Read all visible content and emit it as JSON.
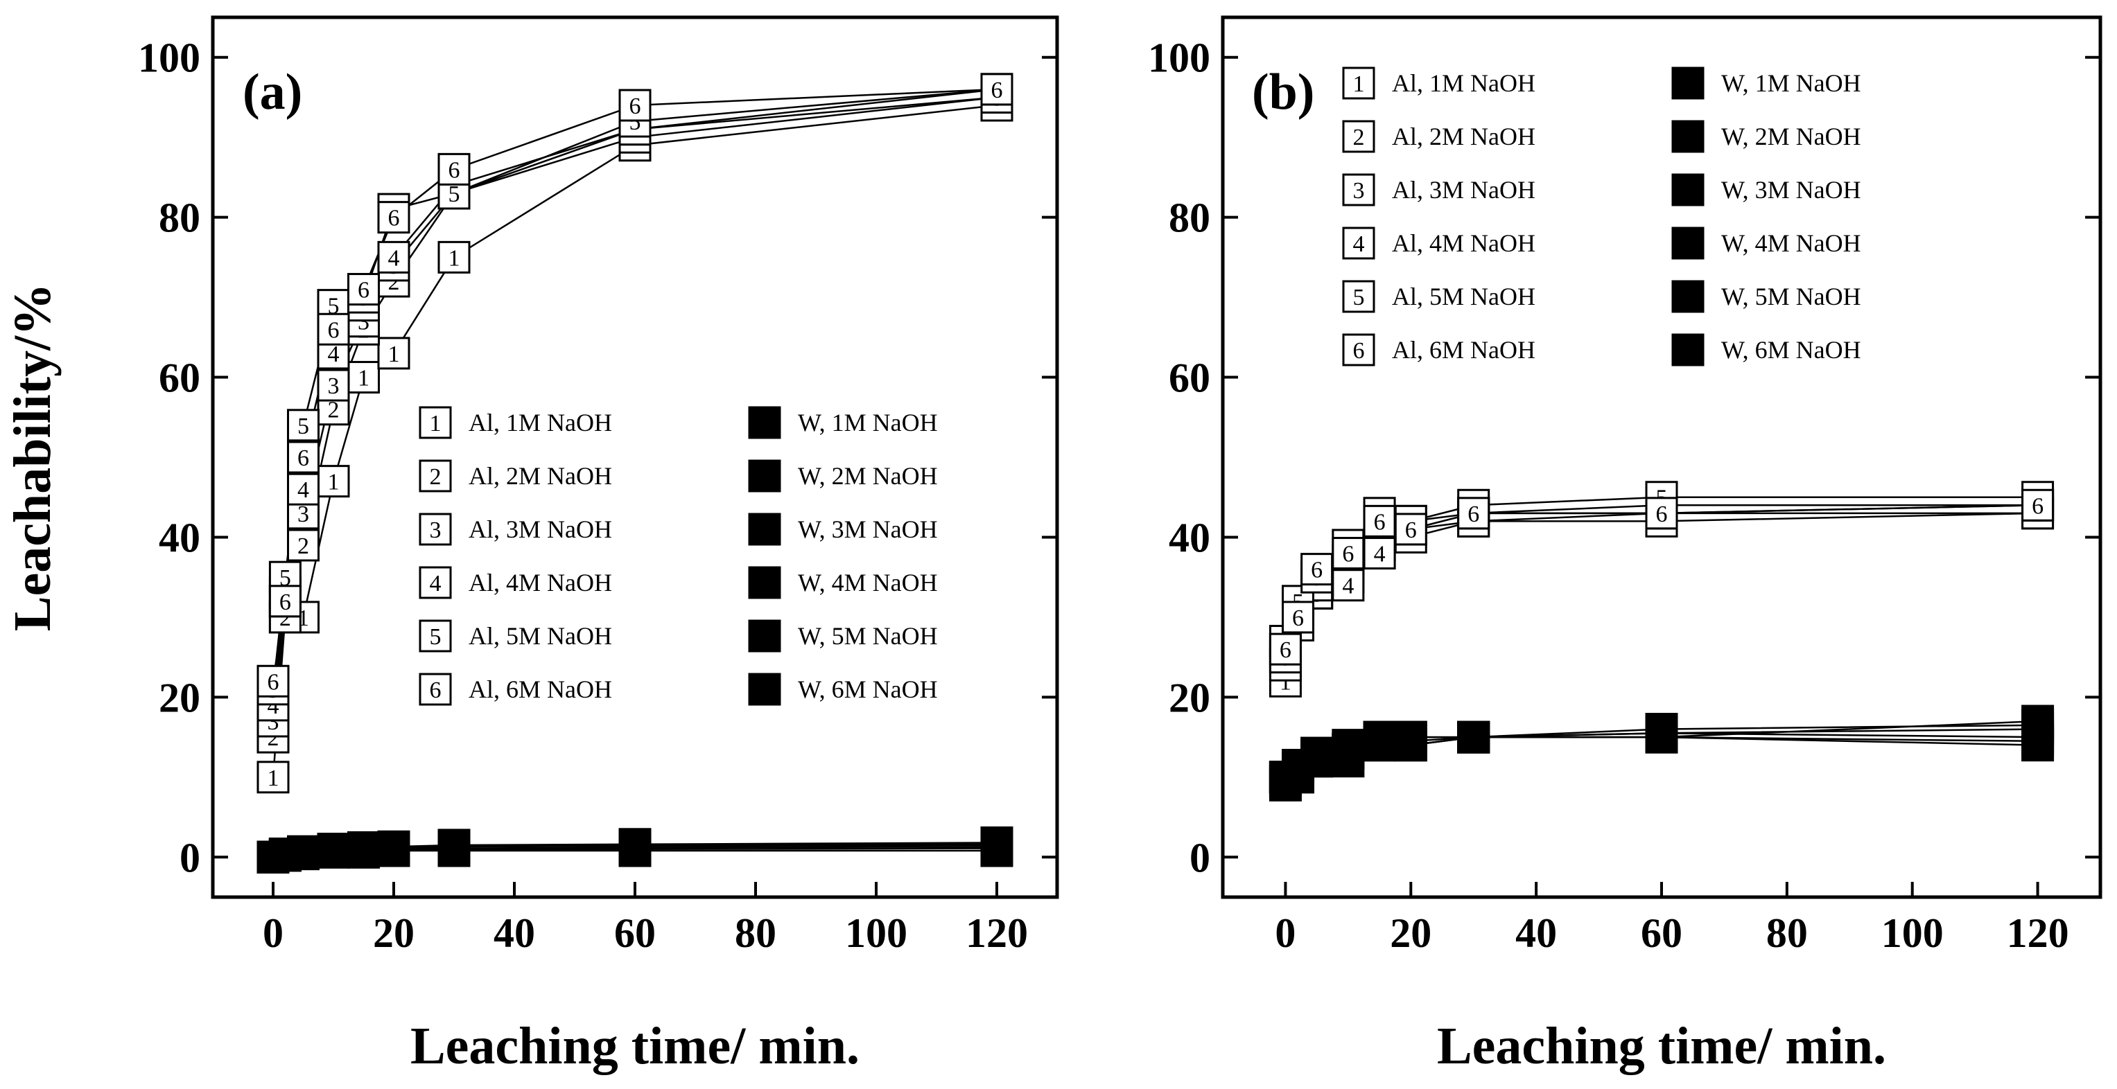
{
  "chart_data": [
    {
      "type": "line",
      "panel": "(a)",
      "xlabel": "Leaching time/ min.",
      "ylabel": "Leachability/%",
      "xlim": [
        -10,
        130
      ],
      "ylim": [
        -5,
        105
      ],
      "xticks": [
        0,
        20,
        40,
        60,
        80,
        100,
        120
      ],
      "yticks": [
        0,
        20,
        40,
        60,
        80,
        100
      ],
      "legend_position": "center-right",
      "x": [
        0,
        2,
        5,
        10,
        15,
        20,
        30,
        60,
        120
      ],
      "series": [
        {
          "name": "Al, 1M NaOH",
          "marker": "1",
          "filled": false,
          "values": [
            10,
            30,
            30,
            47,
            60,
            63,
            75,
            89,
            94
          ]
        },
        {
          "name": "Al, 2M NaOH",
          "marker": "2",
          "filled": false,
          "values": [
            15,
            30,
            39,
            56,
            66,
            72,
            83,
            90,
            95
          ]
        },
        {
          "name": "Al, 3M NaOH",
          "marker": "3",
          "filled": false,
          "values": [
            17,
            32,
            43,
            59,
            67,
            74,
            83,
            91,
            95
          ]
        },
        {
          "name": "Al, 4M NaOH",
          "marker": "4",
          "filled": false,
          "values": [
            19,
            33,
            46,
            63,
            69,
            75,
            84,
            91,
            96
          ]
        },
        {
          "name": "Al, 5M NaOH",
          "marker": "5",
          "filled": false,
          "values": [
            21,
            35,
            54,
            69,
            70,
            81,
            83,
            92,
            96
          ]
        },
        {
          "name": "Al, 6M NaOH",
          "marker": "6",
          "filled": false,
          "values": [
            22,
            32,
            50,
            66,
            71,
            80,
            86,
            94,
            96
          ]
        },
        {
          "name": "W, 1M NaOH",
          "marker": "1",
          "filled": true,
          "values": [
            0,
            0.2,
            0.4,
            0.6,
            0.6,
            0.8,
            0.8,
            0.8,
            0.8
          ]
        },
        {
          "name": "W, 2M NaOH",
          "marker": "2",
          "filled": true,
          "values": [
            0,
            0.3,
            0.5,
            0.7,
            0.8,
            0.9,
            1.0,
            1.0,
            1.1
          ]
        },
        {
          "name": "W, 3M NaOH",
          "marker": "3",
          "filled": true,
          "values": [
            0,
            0.3,
            0.5,
            0.8,
            0.9,
            1.0,
            1.1,
            1.2,
            1.3
          ]
        },
        {
          "name": "W, 4M NaOH",
          "marker": "4",
          "filled": true,
          "values": [
            0,
            0.3,
            0.6,
            0.9,
            1.0,
            1.1,
            1.3,
            1.4,
            1.5
          ]
        },
        {
          "name": "W, 5M NaOH",
          "marker": "5",
          "filled": true,
          "values": [
            0,
            0.4,
            0.6,
            1.0,
            1.1,
            1.2,
            1.4,
            1.5,
            1.6
          ]
        },
        {
          "name": "W, 6M NaOH",
          "marker": "6",
          "filled": true,
          "values": [
            0,
            0.4,
            0.7,
            1.0,
            1.2,
            1.3,
            1.5,
            1.6,
            1.8
          ]
        }
      ]
    },
    {
      "type": "line",
      "panel": "(b)",
      "xlabel": "Leaching time/ min.",
      "ylabel": "",
      "xlim": [
        -10,
        130
      ],
      "ylim": [
        -5,
        105
      ],
      "xticks": [
        0,
        20,
        40,
        60,
        80,
        100,
        120
      ],
      "yticks": [
        0,
        20,
        40,
        60,
        80,
        100
      ],
      "legend_position": "top",
      "x": [
        0,
        2,
        5,
        10,
        15,
        20,
        30,
        60,
        120
      ],
      "series": [
        {
          "name": "Al, 1M NaOH",
          "marker": "1",
          "filled": false,
          "values": [
            22,
            29,
            33,
            35,
            38,
            40,
            42,
            42,
            43
          ]
        },
        {
          "name": "Al, 2M NaOH",
          "marker": "2",
          "filled": false,
          "values": [
            24,
            31,
            33,
            36,
            39,
            41,
            42,
            43,
            43
          ]
        },
        {
          "name": "Al, 3M NaOH",
          "marker": "3",
          "filled": false,
          "values": [
            25,
            30,
            33,
            37,
            40,
            41,
            43,
            43,
            44
          ]
        },
        {
          "name": "Al, 4M NaOH",
          "marker": "4",
          "filled": false,
          "values": [
            26,
            30,
            34,
            34,
            38,
            42,
            43,
            44,
            44
          ]
        },
        {
          "name": "Al, 5M NaOH",
          "marker": "5",
          "filled": false,
          "values": [
            27,
            32,
            35,
            39,
            43,
            42,
            44,
            45,
            45
          ]
        },
        {
          "name": "Al, 6M NaOH",
          "marker": "6",
          "filled": false,
          "values": [
            26,
            30,
            36,
            38,
            42,
            41,
            43,
            43,
            44
          ]
        },
        {
          "name": "W, 1M NaOH",
          "marker": "1",
          "filled": true,
          "values": [
            9,
            10,
            12,
            13,
            14,
            14,
            15,
            15,
            14
          ]
        },
        {
          "name": "W, 2M NaOH",
          "marker": "2",
          "filled": true,
          "values": [
            9.5,
            11,
            12,
            13,
            14,
            14,
            15,
            15,
            14.5
          ]
        },
        {
          "name": "W, 3M NaOH",
          "marker": "3",
          "filled": true,
          "values": [
            10,
            11,
            12.5,
            13.5,
            14.5,
            14.5,
            15,
            15.5,
            15
          ]
        },
        {
          "name": "W, 4M NaOH",
          "marker": "4",
          "filled": true,
          "values": [
            10,
            11,
            13,
            13.5,
            15,
            15,
            15,
            15.5,
            16
          ]
        },
        {
          "name": "W, 5M NaOH",
          "marker": "5",
          "filled": true,
          "values": [
            10,
            11.5,
            13,
            14,
            15,
            15,
            15,
            16,
            16.5
          ]
        },
        {
          "name": "W, 6M NaOH",
          "marker": "6",
          "filled": true,
          "values": [
            10,
            10,
            12,
            12,
            14,
            14,
            15,
            15,
            17
          ]
        }
      ]
    }
  ]
}
